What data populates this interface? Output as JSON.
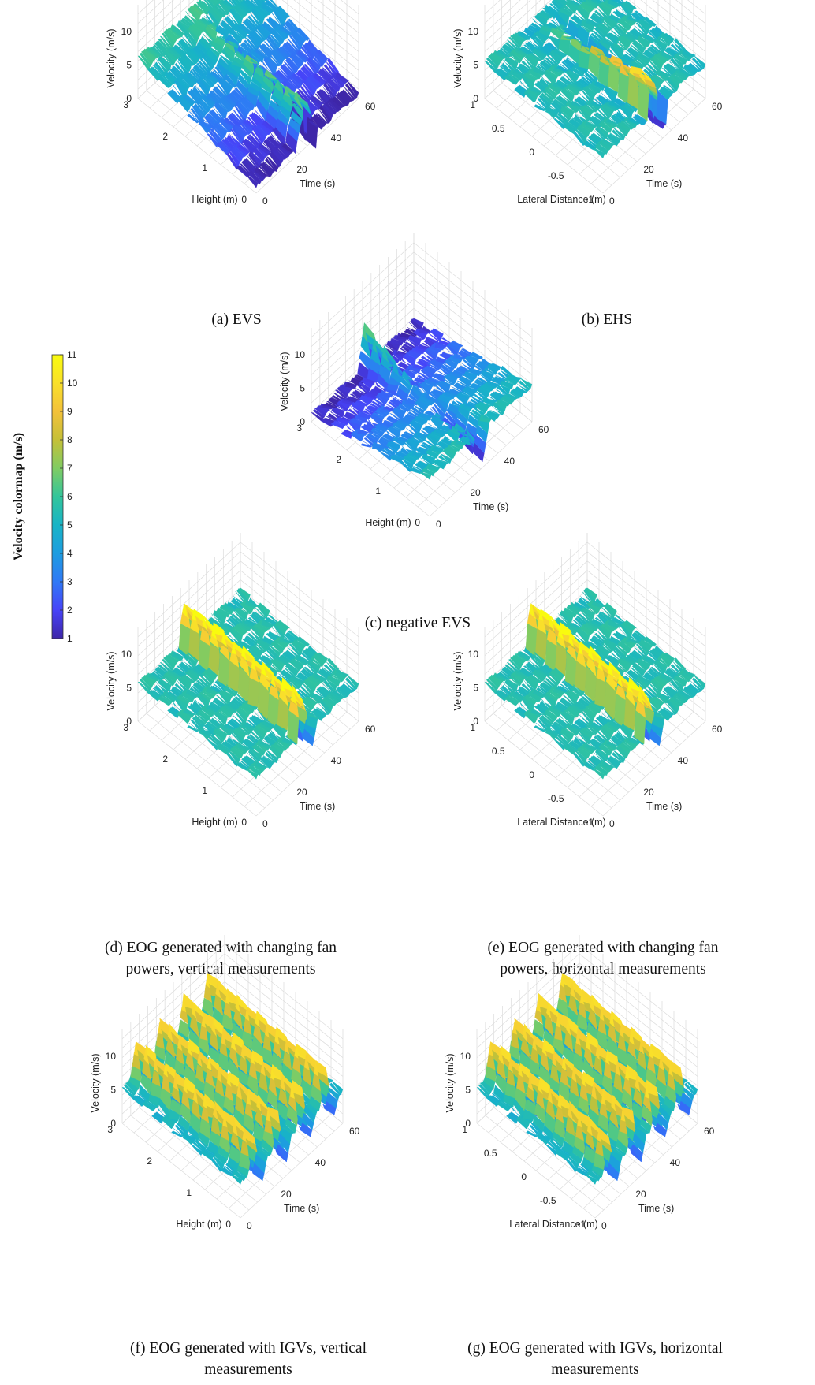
{
  "colorbar": {
    "label": "Velocity colormap (m/s)",
    "ticks": [
      "11",
      "10",
      "9",
      "8",
      "7",
      "6",
      "5",
      "4",
      "3",
      "2",
      "1"
    ],
    "range": [
      1,
      11
    ],
    "colors": [
      "#3e26a8",
      "#4743f8",
      "#2f79f6",
      "#1d9de0",
      "#18b4c6",
      "#33c59b",
      "#80cc63",
      "#c5c038",
      "#f3c13a",
      "#f9e02a",
      "#f9fb0e"
    ]
  },
  "chart_data": [
    {
      "id": "a",
      "type": "surface3d",
      "caption": "(a) EVS",
      "zlabel": "Velocity (m/s)",
      "ylabel": "Height (m)",
      "xlabel": "Time (s)",
      "zticks": [
        "0",
        "5",
        "10"
      ],
      "yticks": [
        "0",
        "1",
        "2",
        "3"
      ],
      "xticks": [
        "0",
        "20",
        "40",
        "60"
      ],
      "gust": "evs"
    },
    {
      "id": "b",
      "type": "surface3d",
      "caption": "(b) EHS",
      "zlabel": "Velocity (m/s)",
      "ylabel": "Lateral Distance (m)",
      "xlabel": "Time (s)",
      "zticks": [
        "0",
        "5",
        "10"
      ],
      "yticks": [
        "-1",
        "-0.5",
        "0",
        "0.5",
        "1"
      ],
      "xticks": [
        "0",
        "20",
        "40",
        "60"
      ],
      "gust": "ehs"
    },
    {
      "id": "c",
      "type": "surface3d",
      "caption": "(c) negative EVS",
      "zlabel": "Velocity (m/s)",
      "ylabel": "Height (m)",
      "xlabel": "Time (s)",
      "zticks": [
        "0",
        "5",
        "10"
      ],
      "yticks": [
        "0",
        "1",
        "2",
        "3"
      ],
      "xticks": [
        "0",
        "20",
        "40",
        "60"
      ],
      "gust": "nevs"
    },
    {
      "id": "d",
      "type": "surface3d",
      "caption": "(d) EOG generated with changing fan powers, vertical measurements",
      "zlabel": "Velocity (m/s)",
      "ylabel": "Height (m)",
      "xlabel": "Time (s)",
      "zticks": [
        "0",
        "5",
        "10"
      ],
      "yticks": [
        "0",
        "1",
        "2",
        "3"
      ],
      "xticks": [
        "0",
        "20",
        "40",
        "60"
      ],
      "gust": "eog"
    },
    {
      "id": "e",
      "type": "surface3d",
      "caption": "(e) EOG generated with changing fan powers, horizontal measurements",
      "zlabel": "Velocity (m/s)",
      "ylabel": "Lateral Distance (m)",
      "xlabel": "Time (s)",
      "zticks": [
        "0",
        "5",
        "10"
      ],
      "yticks": [
        "-1",
        "-0.5",
        "0",
        "0.5",
        "1"
      ],
      "xticks": [
        "0",
        "20",
        "40",
        "60"
      ],
      "gust": "eog"
    },
    {
      "id": "f",
      "type": "surface3d",
      "caption": "(f) EOG generated with IGVs, vertical measurements",
      "zlabel": "Velocity (m/s)",
      "ylabel": "Height (m)",
      "xlabel": "Time (s)",
      "zticks": [
        "0",
        "5",
        "10"
      ],
      "yticks": [
        "0",
        "1",
        "2",
        "3"
      ],
      "xticks": [
        "0",
        "20",
        "40",
        "60"
      ],
      "gust": "igv"
    },
    {
      "id": "g",
      "type": "surface3d",
      "caption": "(g) EOG generated with IGVs, horizontal measurements",
      "zlabel": "Velocity (m/s)",
      "ylabel": "Lateral Distance (m)",
      "xlabel": "Time (s)",
      "zticks": [
        "0",
        "5",
        "10"
      ],
      "yticks": [
        "-1",
        "-0.5",
        "0",
        "0.5",
        "1"
      ],
      "xticks": [
        "0",
        "20",
        "40",
        "60"
      ],
      "gust": "igv"
    }
  ]
}
